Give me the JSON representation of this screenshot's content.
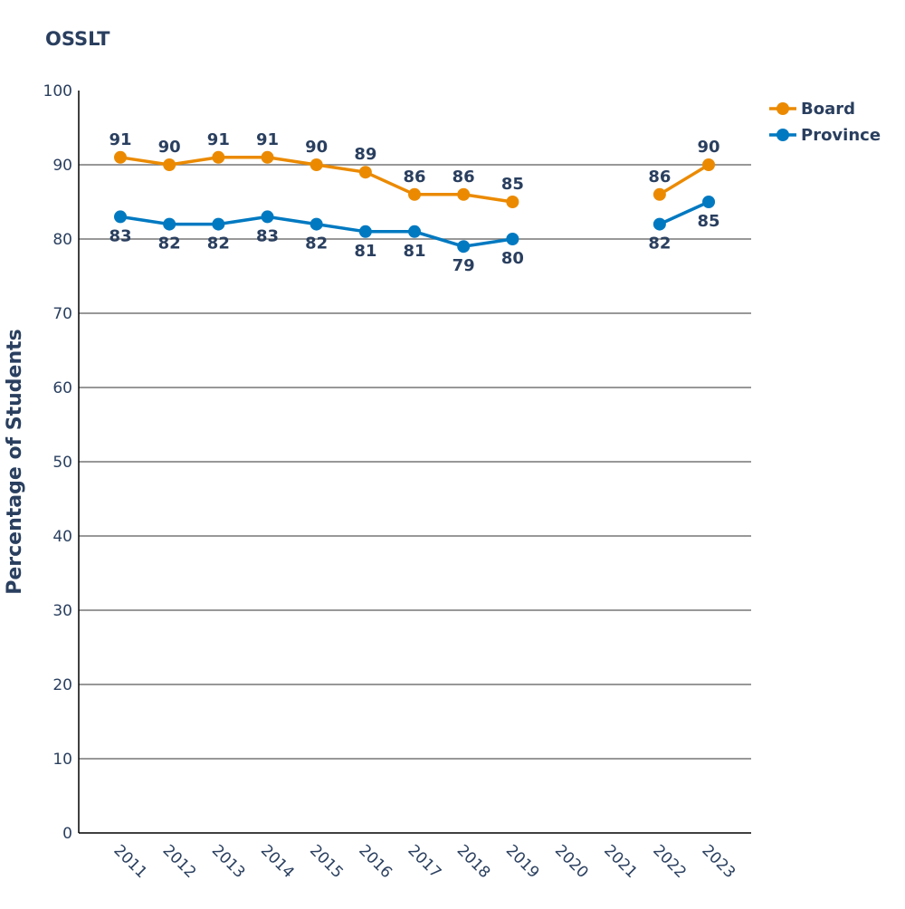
{
  "chart_data": {
    "type": "line",
    "title": "OSSLT",
    "xlabel": "",
    "ylabel": "Percentage of Students",
    "categories": [
      "2011",
      "2012",
      "2013",
      "2014",
      "2015",
      "2016",
      "2017",
      "2018",
      "2019",
      "2020",
      "2021",
      "2022",
      "2023"
    ],
    "ylim": [
      0,
      100
    ],
    "yticks": [
      0,
      10,
      20,
      30,
      40,
      50,
      60,
      70,
      80,
      90,
      100
    ],
    "grid": true,
    "legend_position": "top-right",
    "series": [
      {
        "name": "Board",
        "color": "#EB8A00",
        "values": [
          91,
          90,
          91,
          91,
          90,
          89,
          86,
          86,
          85,
          null,
          null,
          86,
          90
        ],
        "label_position": "above"
      },
      {
        "name": "Province",
        "color": "#0079C1",
        "values": [
          83,
          82,
          82,
          83,
          82,
          81,
          81,
          79,
          80,
          null,
          null,
          82,
          85
        ],
        "label_position": "below"
      }
    ],
    "text_color": "#2A3F5F"
  }
}
